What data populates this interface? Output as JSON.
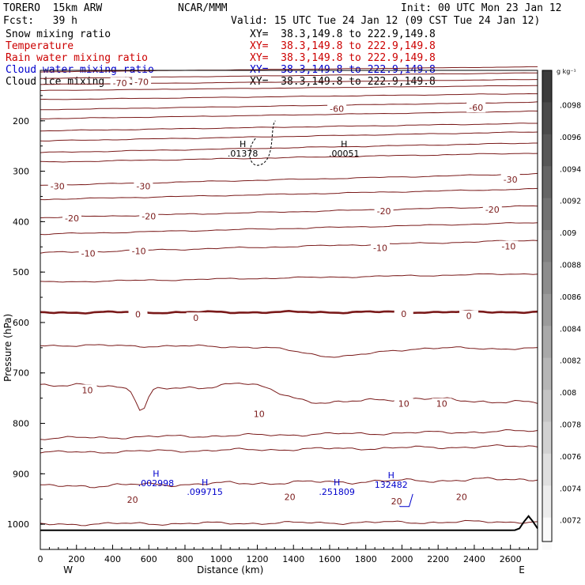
{
  "header": {
    "model": "TORERO  15km ARW",
    "org": "NCAR/MMM",
    "init": "Init: 00 UTC Mon 23 Jan 12",
    "fcst": "Fcst:   39 h",
    "valid": "Valid: 15 UTC Tue 24 Jan 12 (09 CST Tue 24 Jan 12)"
  },
  "fields": [
    {
      "name": "Snow mixing ratio",
      "xy": "XY=  38.3,149.8 to 222.9,149.8",
      "color": "#000000"
    },
    {
      "name": "Temperature",
      "xy": "XY=  38.3,149.8 to 222.9,149.8",
      "color": "#cc0000"
    },
    {
      "name": "Rain water mixing ratio",
      "xy": "XY=  38.3,149.8 to 222.9,149.8",
      "color": "#cc0000"
    },
    {
      "name": "Cloud water mixing ratio",
      "xy": "XY=  38.3,149.8 to 222.9,149.8",
      "color": "#0000cc"
    },
    {
      "name": "Cloud ice mixing ratio",
      "xy": "XY=  38.3,149.8 to 222.9,149.8",
      "color": "#000000"
    }
  ],
  "chart_data": {
    "type": "cross-section contour",
    "xlabel": "Distance (km)",
    "ylabel": "Pressure (hPa)",
    "xlim": [
      0,
      2750
    ],
    "ylim": [
      1050,
      100
    ],
    "x_ticks": [
      0,
      200,
      400,
      600,
      800,
      1000,
      1200,
      1400,
      1600,
      1800,
      2000,
      2200,
      2400,
      2600
    ],
    "y_ticks": [
      200,
      300,
      400,
      500,
      600,
      700,
      800,
      900,
      1000
    ],
    "end_labels": {
      "left": "W",
      "right": "E"
    },
    "colorbar": {
      "unit": "g kg⁻¹",
      "ticks": [
        ".0098",
        ".0096",
        ".0094",
        ".0092",
        ".009",
        ".0088",
        ".0086",
        ".0084",
        ".0082",
        ".008",
        ".0078",
        ".0076",
        ".0074",
        ".0072"
      ]
    },
    "temperature_labels": [
      {
        "text": "-70",
        "x": 440,
        "p": 125
      },
      {
        "text": "-70",
        "x": 560,
        "p": 123
      },
      {
        "text": "-60",
        "x": 1640,
        "p": 176
      },
      {
        "text": "-60",
        "x": 2410,
        "p": 174
      },
      {
        "text": "-30",
        "x": 95,
        "p": 330
      },
      {
        "text": "-30",
        "x": 570,
        "p": 330
      },
      {
        "text": "-30",
        "x": 2600,
        "p": 316
      },
      {
        "text": "-20",
        "x": 175,
        "p": 393
      },
      {
        "text": "-20",
        "x": 600,
        "p": 389
      },
      {
        "text": "-20",
        "x": 1900,
        "p": 379
      },
      {
        "text": "-20",
        "x": 2500,
        "p": 376
      },
      {
        "text": "-10",
        "x": 265,
        "p": 463
      },
      {
        "text": "-10",
        "x": 545,
        "p": 458
      },
      {
        "text": "-10",
        "x": 1880,
        "p": 452
      },
      {
        "text": "-10",
        "x": 2590,
        "p": 449
      },
      {
        "text": "0",
        "x": 540,
        "p": 584
      },
      {
        "text": "0",
        "x": 860,
        "p": 591
      },
      {
        "text": "0",
        "x": 2010,
        "p": 583
      },
      {
        "text": "0",
        "x": 2370,
        "p": 587
      },
      {
        "text": "10",
        "x": 260,
        "p": 734
      },
      {
        "text": "10",
        "x": 1210,
        "p": 781
      },
      {
        "text": "10",
        "x": 2010,
        "p": 761
      },
      {
        "text": "10",
        "x": 2220,
        "p": 761
      },
      {
        "text": "20",
        "x": 510,
        "p": 951
      },
      {
        "text": "20",
        "x": 1380,
        "p": 946
      },
      {
        "text": "20",
        "x": 1970,
        "p": 954
      },
      {
        "text": "20",
        "x": 2330,
        "p": 946
      }
    ],
    "maxima": [
      {
        "label": "H",
        "value": ".01378",
        "x": 1120,
        "p": 252,
        "color": "#000000"
      },
      {
        "label": "H",
        "value": ".00051",
        "x": 1680,
        "p": 252,
        "color": "#000000"
      },
      {
        "label": "H",
        "value": ".002998",
        "x": 640,
        "p": 906,
        "color": "#0000cc"
      },
      {
        "label": "H",
        "value": ".099715",
        "x": 910,
        "p": 923,
        "color": "#0000cc"
      },
      {
        "label": "H",
        "value": ".251809",
        "x": 1640,
        "p": 923,
        "color": "#0000cc"
      },
      {
        "label": "H",
        "value": "132482",
        "x": 1940,
        "p": 909,
        "color": "#0000cc"
      }
    ]
  }
}
